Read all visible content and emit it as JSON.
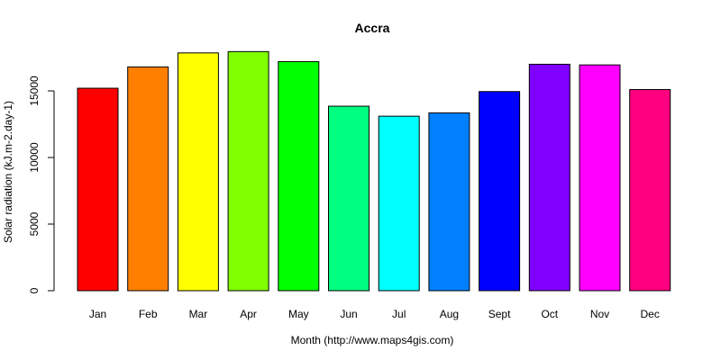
{
  "chart_data": {
    "type": "bar",
    "title": "Accra",
    "xlabel": "Month (http://www.maps4gis.com)",
    "ylabel": "Solar radiation (kJ.m-2.day-1)",
    "categories": [
      "Jan",
      "Feb",
      "Mar",
      "Apr",
      "May",
      "Jun",
      "Jul",
      "Aug",
      "Sept",
      "Oct",
      "Nov",
      "Dec"
    ],
    "values": [
      15200,
      16800,
      17850,
      17950,
      17200,
      13850,
      13100,
      13350,
      14950,
      17000,
      16950,
      15100
    ],
    "colors": [
      "#FF0000",
      "#FF8000",
      "#FFFF00",
      "#80FF00",
      "#00FF00",
      "#00FF80",
      "#00FFFF",
      "#0080FF",
      "#0000FF",
      "#8000FF",
      "#FF00FF",
      "#FF0080"
    ],
    "yticks": [
      0,
      5000,
      10000,
      15000
    ],
    "ylim": [
      0,
      18000
    ],
    "legend": false,
    "grid": false
  }
}
